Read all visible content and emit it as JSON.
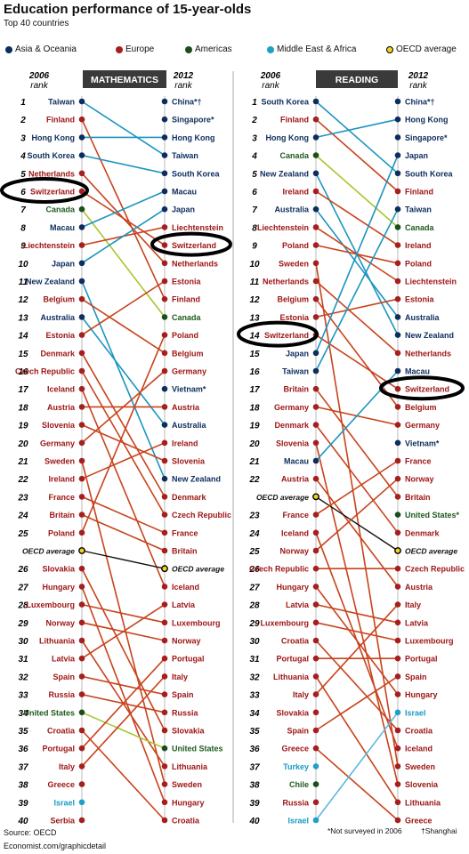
{
  "title": "Education performance of 15-year-olds",
  "subtitle": "Top 40 countries",
  "legend": [
    {
      "label": "Asia & Oceania",
      "color": "#0d2d5c"
    },
    {
      "label": "Europe",
      "color": "#a51f1f"
    },
    {
      "label": "Americas",
      "color": "#1d4d1d"
    },
    {
      "label": "Middle East & Africa",
      "color": "#1ea0c8"
    },
    {
      "label": "OECD average",
      "color": "#f2d21b"
    }
  ],
  "source": "Source: OECD",
  "credit": "Economist.com/graphicdetail",
  "note_not_surveyed": "*Not surveyed in 2006",
  "note_shanghai": "†Shanghai",
  "chart_data": [
    {
      "type": "slope",
      "title": "MATHEMATICS",
      "left_header": "2006 rank",
      "right_header": "2012 rank",
      "y_unit": "rank",
      "ranks_2006": [
        "Taiwan",
        "Finland",
        "Hong Kong",
        "South Korea",
        "Netherlands",
        "Switzerland",
        "Canada",
        "Macau",
        "Liechtenstein",
        "Japan",
        "New Zealand",
        "Belgium",
        "Australia",
        "Estonia",
        "Denmark",
        "Czech Republic",
        "Iceland",
        "Austria",
        "Slovenia",
        "Germany",
        "Sweden",
        "Ireland",
        "France",
        "Britain",
        "Poland",
        "OECD average",
        "Slovakia",
        "Hungary",
        "Luxembourg",
        "Norway",
        "Lithuania",
        "Latvia",
        "Spain",
        "Russia",
        "United States",
        "Croatia",
        "Portugal",
        "Italy",
        "Greece",
        "Israel",
        "Serbia"
      ],
      "ranks_2012": [
        "China*†",
        "Singapore*",
        "Hong Kong",
        "Taiwan",
        "South Korea",
        "Macau",
        "Japan",
        "Liechtenstein",
        "Switzerland",
        "Netherlands",
        "Estonia",
        "Finland",
        "Canada",
        "Poland",
        "Belgium",
        "Germany",
        "Vietnam*",
        "Austria",
        "Australia",
        "Ireland",
        "Slovenia",
        "New Zealand",
        "Denmark",
        "Czech Republic",
        "France",
        "Britain",
        "OECD average",
        "Iceland",
        "Latvia",
        "Luxembourg",
        "Norway",
        "Portugal",
        "Italy",
        "Spain",
        "Russia",
        "Slovakia",
        "United States",
        "Lithuania",
        "Sweden",
        "Hungary",
        "Croatia"
      ],
      "highlighted": "Switzerland"
    },
    {
      "type": "slope",
      "title": "READING",
      "left_header": "2006 rank",
      "right_header": "2012 rank",
      "y_unit": "rank",
      "ranks_2006": [
        "South Korea",
        "Finland",
        "Hong Kong",
        "Canada",
        "New Zealand",
        "Ireland",
        "Australia",
        "Liechtenstein",
        "Poland",
        "Sweden",
        "Netherlands",
        "Belgium",
        "Estonia",
        "Switzerland",
        "Japan",
        "Taiwan",
        "Britain",
        "Germany",
        "Denmark",
        "Slovenia",
        "Macau",
        "Austria",
        "OECD average",
        "France",
        "Iceland",
        "Norway",
        "Czech Republic",
        "Hungary",
        "Latvia",
        "Luxembourg",
        "Croatia",
        "Portugal",
        "Lithuania",
        "Italy",
        "Slovakia",
        "Spain",
        "Greece",
        "Turkey",
        "Chile",
        "Russia",
        "Israel"
      ],
      "ranks_2012": [
        "China*†",
        "Hong Kong",
        "Singapore*",
        "Japan",
        "South Korea",
        "Finland",
        "Taiwan",
        "Canada",
        "Ireland",
        "Poland",
        "Liechtenstein",
        "Estonia",
        "Australia",
        "New Zealand",
        "Netherlands",
        "Macau",
        "Switzerland",
        "Belgium",
        "Germany",
        "Vietnam*",
        "France",
        "Norway",
        "Britain",
        "United States*",
        "Denmark",
        "OECD average",
        "Czech Republic",
        "Austria",
        "Italy",
        "Latvia",
        "Luxembourg",
        "Portugal",
        "Spain",
        "Hungary",
        "Israel",
        "Croatia",
        "Iceland",
        "Sweden",
        "Slovenia",
        "Lithuania",
        "Greece"
      ],
      "highlighted": "Switzerland"
    }
  ]
}
